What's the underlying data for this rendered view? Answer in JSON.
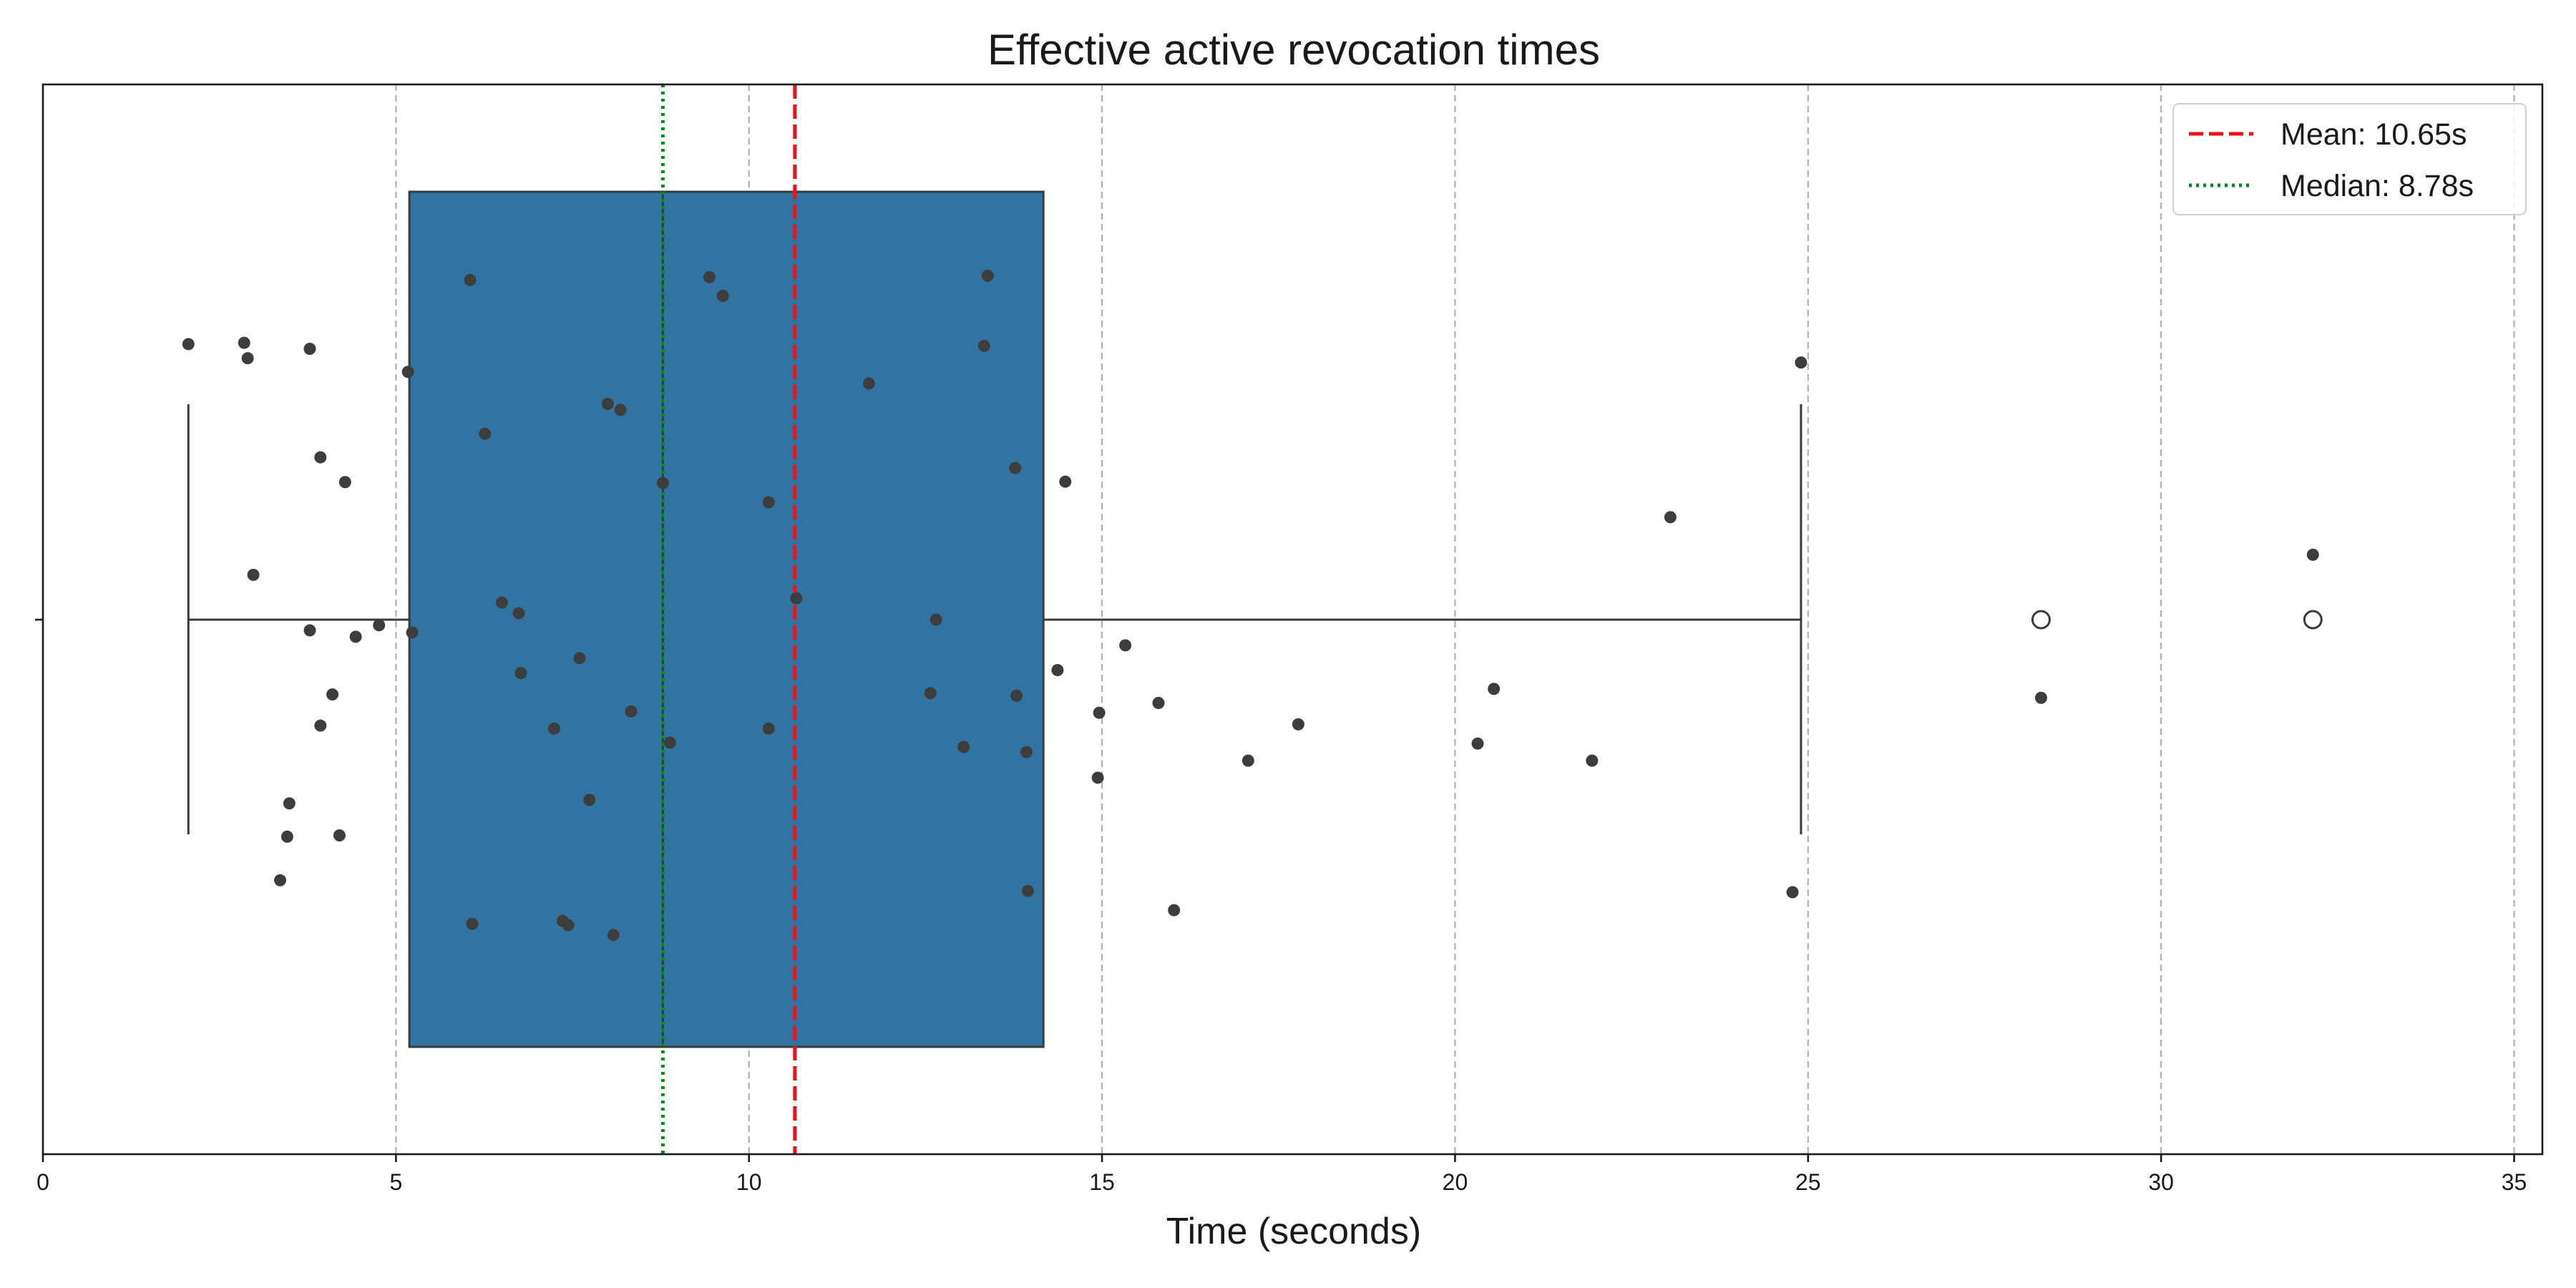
{
  "chart_data": {
    "type": "box",
    "title": "Effective active revocation times",
    "xlabel": "Time (seconds)",
    "ylabel": "",
    "xlim": [
      0,
      35.4
    ],
    "xticks": [
      0,
      5,
      10,
      15,
      20,
      25,
      30,
      35
    ],
    "grid": "x-dashed",
    "legend_position": "top-right",
    "box": {
      "whisker_low": 2.06,
      "q1": 5.19,
      "median": 8.78,
      "q3": 14.17,
      "whisker_high": 24.9,
      "outliers": [
        28.3,
        32.15
      ],
      "color": "#3274a1",
      "edge_color": "#3a3a3a"
    },
    "reference_lines": [
      {
        "label": "Mean: 10.65s",
        "value": 10.65,
        "color": "#e8141a",
        "style": "dashed"
      },
      {
        "label": "Median: 8.78s",
        "value": 8.78,
        "color": "#0a8a1e",
        "style": "dotted"
      }
    ],
    "points": [
      [
        2.06,
        0.645
      ],
      [
        2.85,
        0.648
      ],
      [
        2.9,
        0.612
      ],
      [
        3.78,
        0.634
      ],
      [
        5.17,
        0.58
      ],
      [
        6.05,
        0.795
      ],
      [
        9.44,
        0.802
      ],
      [
        9.63,
        0.758
      ],
      [
        13.38,
        0.805
      ],
      [
        13.33,
        0.641
      ],
      [
        8.0,
        0.505
      ],
      [
        8.18,
        0.491
      ],
      [
        11.7,
        0.553
      ],
      [
        24.9,
        0.602
      ],
      [
        3.93,
        0.38
      ],
      [
        4.28,
        0.322
      ],
      [
        6.26,
        0.435
      ],
      [
        8.78,
        0.32
      ],
      [
        10.28,
        0.275
      ],
      [
        13.77,
        0.355
      ],
      [
        14.48,
        0.323
      ],
      [
        23.05,
        0.24
      ],
      [
        2.98,
        0.105
      ],
      [
        3.78,
        -0.025
      ],
      [
        4.43,
        -0.04
      ],
      [
        4.76,
        -0.013
      ],
      [
        5.23,
        -0.03
      ],
      [
        6.5,
        0.04
      ],
      [
        6.74,
        0.015
      ],
      [
        10.67,
        0.05
      ],
      [
        12.65,
        0.0
      ],
      [
        15.33,
        -0.06
      ],
      [
        32.15,
        0.152
      ],
      [
        4.1,
        -0.175
      ],
      [
        3.93,
        -0.248
      ],
      [
        6.77,
        -0.125
      ],
      [
        7.6,
        -0.09
      ],
      [
        7.24,
        -0.255
      ],
      [
        8.33,
        -0.215
      ],
      [
        8.88,
        -0.288
      ],
      [
        10.28,
        -0.255
      ],
      [
        12.57,
        -0.172
      ],
      [
        13.04,
        -0.298
      ],
      [
        13.79,
        -0.178
      ],
      [
        13.93,
        -0.31
      ],
      [
        14.37,
        -0.118
      ],
      [
        14.96,
        -0.218
      ],
      [
        14.94,
        -0.37
      ],
      [
        15.8,
        -0.195
      ],
      [
        17.78,
        -0.245
      ],
      [
        17.07,
        -0.33
      ],
      [
        20.55,
        -0.162
      ],
      [
        20.32,
        -0.29
      ],
      [
        21.94,
        -0.33
      ],
      [
        28.3,
        -0.183
      ],
      [
        3.49,
        -0.43
      ],
      [
        3.46,
        -0.508
      ],
      [
        4.2,
        -0.505
      ],
      [
        3.36,
        -0.61
      ],
      [
        7.74,
        -0.422
      ],
      [
        6.08,
        -0.712
      ],
      [
        7.36,
        -0.705
      ],
      [
        7.44,
        -0.715
      ],
      [
        8.08,
        -0.738
      ],
      [
        13.95,
        -0.635
      ],
      [
        16.02,
        -0.68
      ],
      [
        24.78,
        -0.638
      ]
    ],
    "point_color": "#3d3d3d"
  }
}
